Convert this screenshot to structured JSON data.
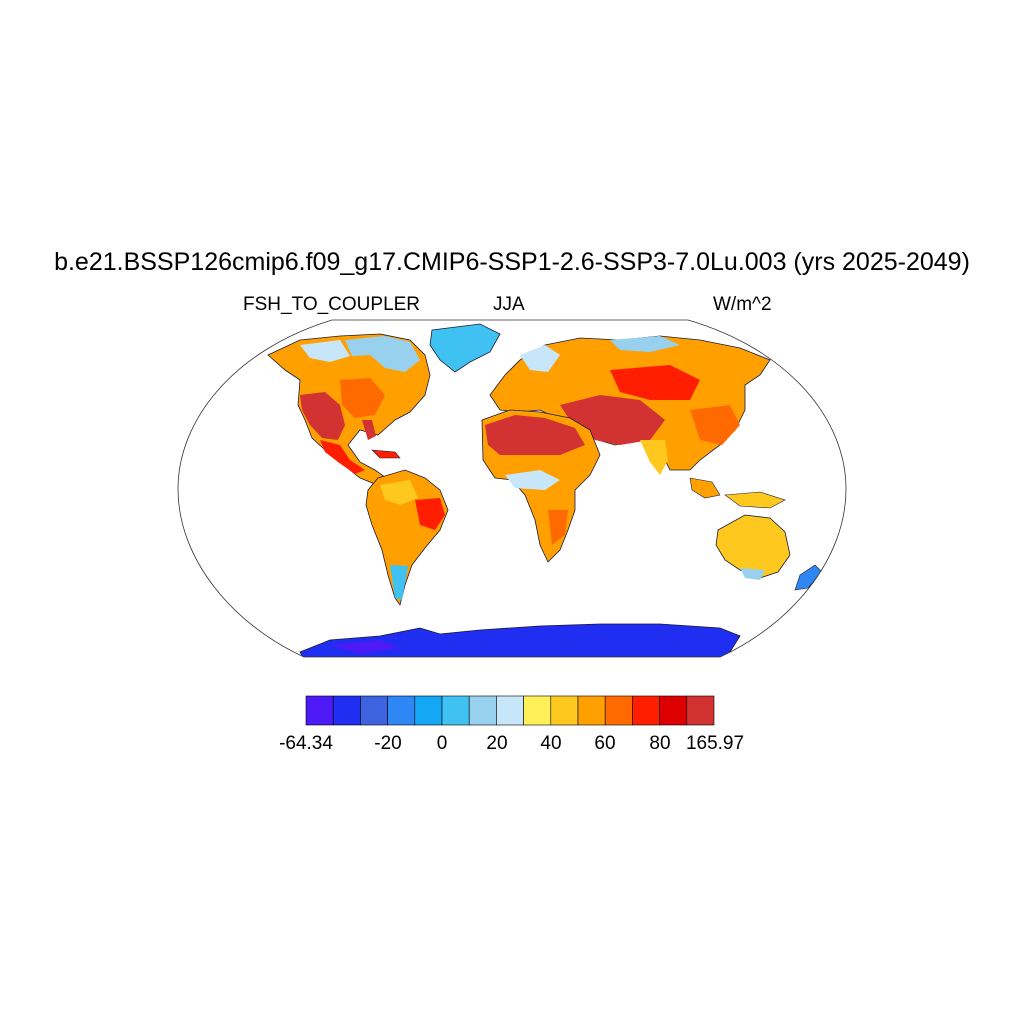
{
  "title": "b.e21.BSSP126cmip6.f09_g17.CMIP6-SSP1-2.6-SSP3-7.0Lu.003 (yrs 2025-2049)",
  "variable": "FSH_TO_COUPLER",
  "season": "JJA",
  "units": "W/m^2",
  "colorbar": {
    "colors": [
      "#4d1af5",
      "#1f2ef0",
      "#3d63e0",
      "#2f86f5",
      "#13a7f5",
      "#3fc2f2",
      "#98d1ee",
      "#c8e6fa",
      "#fff05a",
      "#ffc81e",
      "#ffa000",
      "#ff6a00",
      "#ff1e00",
      "#dc0000",
      "#d23232"
    ],
    "labels": [
      "-64.34",
      "-20",
      "0",
      "20",
      "40",
      "60",
      "80",
      "165.97"
    ]
  }
}
